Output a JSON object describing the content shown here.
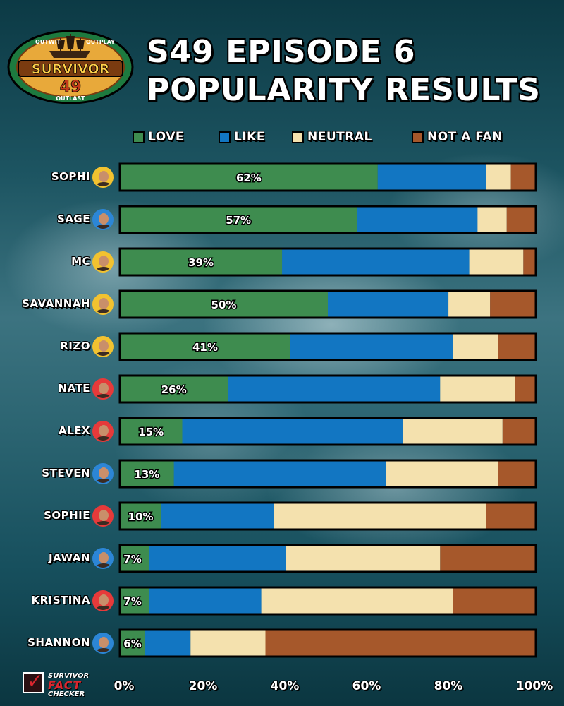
{
  "header": {
    "title_line1": "S49 EPISODE 6",
    "title_line2": "POPULARITY RESULTS"
  },
  "logo": {
    "main": "SURVIVOR",
    "number": "49",
    "top_left": "OUTWIT",
    "top_right": "OUTPLAY",
    "bottom": "OUTLAST"
  },
  "footer_logo": {
    "line1": "SURVIVOR",
    "line2": "FACT",
    "line3": "CHECKER"
  },
  "colors": {
    "love": "#3e8c4f",
    "like": "#1276c2",
    "neutral": "#f4e1ae",
    "not_a_fan": "#a6582b"
  },
  "chart_data": {
    "type": "bar",
    "orientation": "horizontal",
    "stacked": true,
    "title": "S49 EPISODE 6 POPULARITY RESULTS",
    "legend": [
      "LOVE",
      "LIKE",
      "NEUTRAL",
      "NOT A FAN"
    ],
    "xlim": [
      0,
      100
    ],
    "x_ticks": [
      "0%",
      "20%",
      "40%",
      "60%",
      "80%",
      "100%"
    ],
    "categories": [
      "SOPHI",
      "SAGE",
      "MC",
      "SAVANNAH",
      "RIZO",
      "NATE",
      "ALEX",
      "STEVEN",
      "SOPHIE",
      "JAWAN",
      "KRISTINA",
      "SHANNON"
    ],
    "series": [
      {
        "name": "LOVE",
        "values": [
          62,
          57,
          39,
          50,
          41,
          26,
          15,
          13,
          10,
          7,
          7,
          6
        ]
      },
      {
        "name": "LIKE",
        "values": [
          26,
          29,
          45,
          29,
          39,
          51,
          53,
          51,
          27,
          33,
          27,
          11
        ]
      },
      {
        "name": "NEUTRAL",
        "values": [
          6,
          7,
          13,
          10,
          11,
          18,
          24,
          27,
          51,
          37,
          46,
          18
        ]
      },
      {
        "name": "NOT A FAN",
        "values": [
          6,
          7,
          3,
          11,
          9,
          5,
          8,
          9,
          12,
          23,
          20,
          65
        ]
      }
    ],
    "data_labels": [
      "62%",
      "57%",
      "39%",
      "50%",
      "41%",
      "26%",
      "15%",
      "13%",
      "10%",
      "7%",
      "7%",
      "6%"
    ],
    "avatar_tribe_colors": [
      "#f2c230",
      "#2c86d6",
      "#f2c230",
      "#f2c230",
      "#f2c230",
      "#e63a3a",
      "#e63a3a",
      "#2c86d6",
      "#e63a3a",
      "#2c86d6",
      "#e63a3a",
      "#2c86d6"
    ]
  }
}
